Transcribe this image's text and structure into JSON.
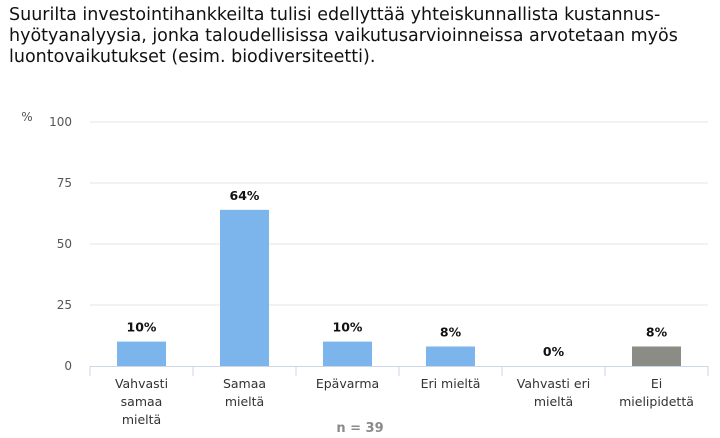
{
  "title": "Suurilta investointihankkeilta tulisi edellyttää yhteiskunnallista kustannus-hyötyanalyysia, jonka taloudellisissa vaikutusarvioinneissa arvotetaan myös luontovaikutukset (esim. biodiversiteetti).",
  "n_label": "n = 39",
  "colors": {
    "default": "#7cb5ec",
    "no_opinion": "#8c8c87",
    "axis": "#ccd6eb",
    "grid": "#e6e6e6"
  },
  "chart_data": {
    "type": "bar",
    "title": "Suurilta investointihankkeilta tulisi edellyttää yhteiskunnallista kustannus-hyötyanalyysia, jonka taloudellisissa vaikutusarvioinneissa arvotetaan myös luontovaikutukset (esim. biodiversiteetti).",
    "ylabel": "%",
    "ylim": [
      0,
      100
    ],
    "yticks": [
      0,
      25,
      50,
      75,
      100
    ],
    "grid": true,
    "categories": [
      "Vahvasti samaa mieltä",
      "Samaa mieltä",
      "Epävarma",
      "Eri mieltä",
      "Vahvasti eri mieltä",
      "Ei mielipidettä"
    ],
    "category_lines": [
      [
        "Vahvasti",
        "samaa",
        "mieltä"
      ],
      [
        "Samaa",
        "mieltä"
      ],
      [
        "Epävarma"
      ],
      [
        "Eri mieltä"
      ],
      [
        "Vahvasti eri",
        "mieltä"
      ],
      [
        "Ei",
        "mielipidettä"
      ]
    ],
    "values": [
      10,
      64,
      10,
      8,
      0,
      8
    ],
    "data_labels": [
      "10%",
      "64%",
      "10%",
      "8%",
      "0%",
      "8%"
    ],
    "bar_colors": [
      "#7cb5ec",
      "#7cb5ec",
      "#7cb5ec",
      "#7cb5ec",
      "#7cb5ec",
      "#8c8c87"
    ]
  }
}
